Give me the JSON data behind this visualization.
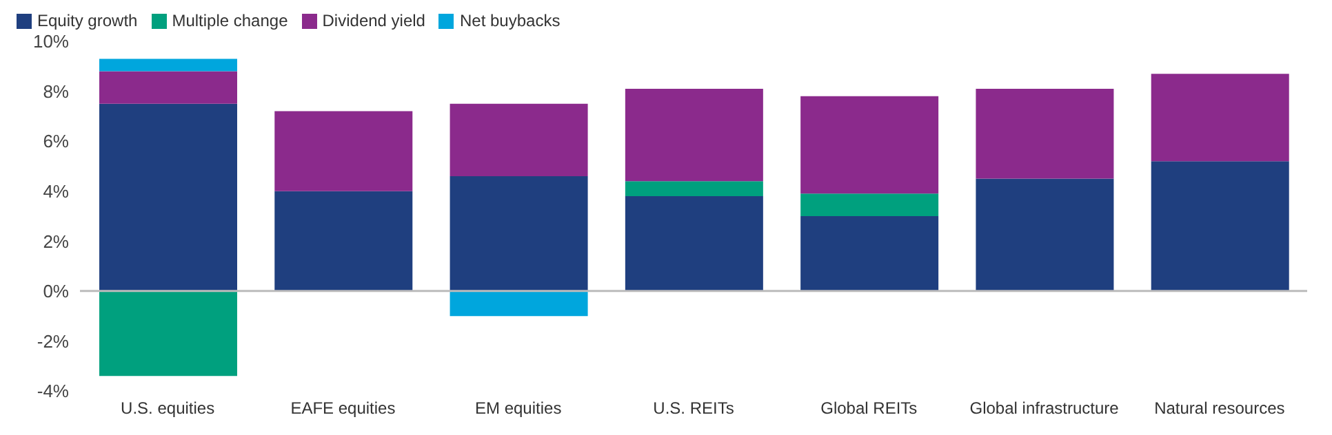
{
  "chart_data": {
    "type": "bar",
    "stacked": true,
    "categories": [
      "U.S. equities",
      "EAFE equities",
      "EM equities",
      "U.S. REITs",
      "Global REITs",
      "Global infrastructure",
      "Natural resources"
    ],
    "series": [
      {
        "name": "Equity growth",
        "color": "#1f3f7f",
        "values": [
          7.5,
          4.0,
          4.6,
          3.8,
          3.0,
          4.5,
          5.2
        ]
      },
      {
        "name": "Multiple change",
        "color": "#00a07e",
        "values": [
          -3.4,
          null,
          null,
          0.6,
          0.9,
          null,
          null
        ]
      },
      {
        "name": "Dividend yield",
        "color": "#8b2a8c",
        "values": [
          1.3,
          3.2,
          2.9,
          3.7,
          3.9,
          3.6,
          3.5
        ]
      },
      {
        "name": "Net buybacks",
        "color": "#00a6dd",
        "values": [
          0.5,
          null,
          -1.0,
          null,
          null,
          null,
          null
        ]
      }
    ],
    "ylim": [
      -4,
      10
    ],
    "yticks": [
      {
        "value": -4,
        "label": "-4%"
      },
      {
        "value": -2,
        "label": "-2%"
      },
      {
        "value": 0,
        "label": "0%"
      },
      {
        "value": 2,
        "label": "2%"
      },
      {
        "value": 4,
        "label": "4%"
      },
      {
        "value": 6,
        "label": "6%"
      },
      {
        "value": 8,
        "label": "8%"
      },
      {
        "value": 10,
        "label": "10%"
      }
    ],
    "ref_lines": [
      {
        "axis": "y",
        "value": 0,
        "color": "#bbbbbb"
      }
    ],
    "grid": false,
    "legend": "top left"
  }
}
